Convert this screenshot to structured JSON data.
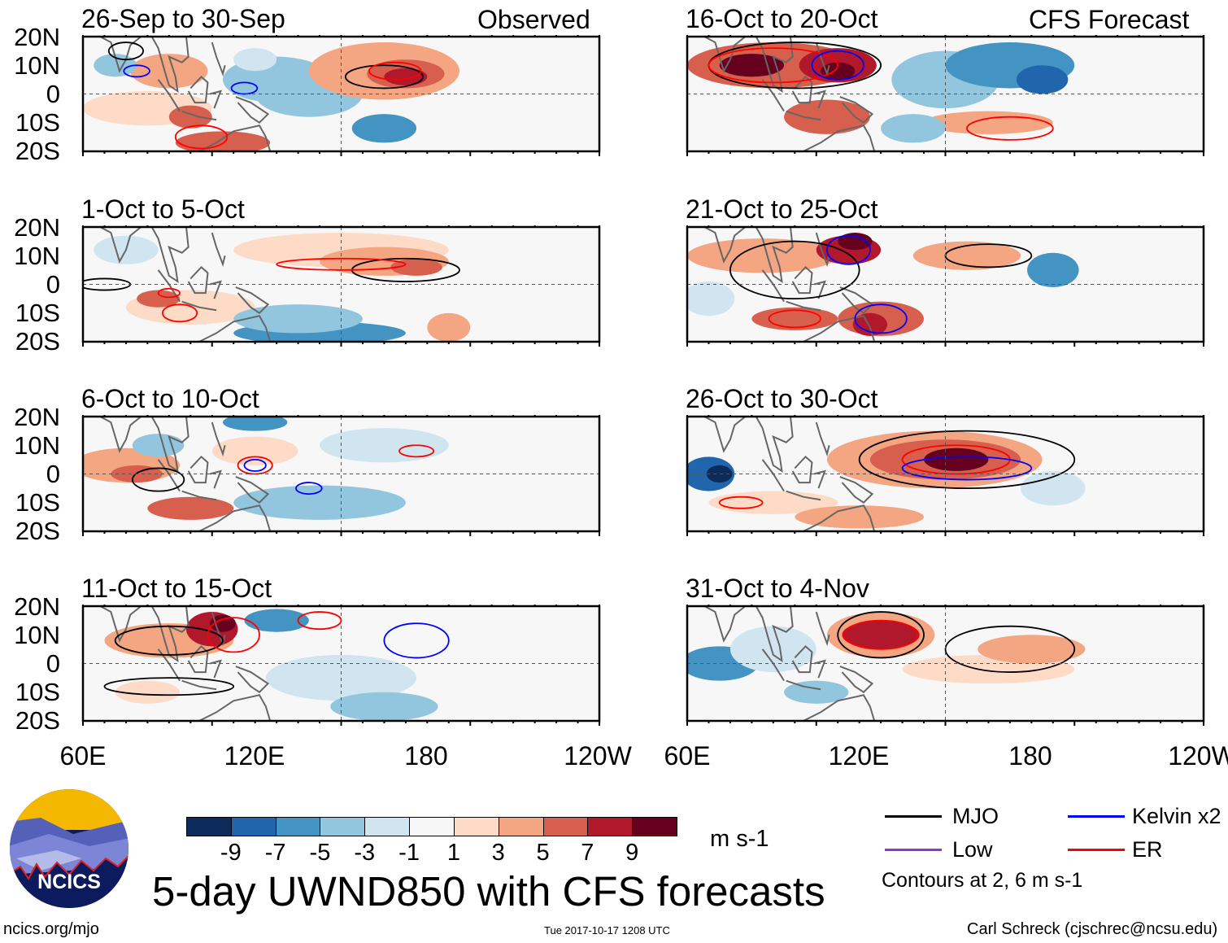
{
  "figure_title": "5-day UWND850 with CFS forecasts",
  "observed_label": "Observed",
  "forecast_label": "CFS Forecast",
  "panels": [
    {
      "title": "26-Sep to 30-Sep",
      "type": "observed"
    },
    {
      "title": "1-Oct to 5-Oct",
      "type": "observed"
    },
    {
      "title": "6-Oct to 10-Oct",
      "type": "observed"
    },
    {
      "title": "11-Oct to 15-Oct",
      "type": "observed"
    },
    {
      "title": "16-Oct to 20-Oct",
      "type": "forecast"
    },
    {
      "title": "21-Oct to 25-Oct",
      "type": "forecast"
    },
    {
      "title": "26-Oct to 30-Oct",
      "type": "forecast"
    },
    {
      "title": "31-Oct to 4-Nov",
      "type": "forecast"
    }
  ],
  "lat_labels": [
    "20N",
    "10N",
    "0",
    "10S",
    "20S"
  ],
  "lon_labels": [
    "60E",
    "120E",
    "180",
    "120W"
  ],
  "colorbar": {
    "colors": [
      "#0b2b5c",
      "#2166ac",
      "#4393c3",
      "#92c5de",
      "#d1e5f0",
      "#f7f7f7",
      "#fddbc7",
      "#f4a582",
      "#d6604d",
      "#b2182b",
      "#67001f"
    ],
    "labels": [
      "-9",
      "-7",
      "-5",
      "-3",
      "-1",
      "1",
      "3",
      "5",
      "7",
      "9"
    ],
    "units": "m s-1"
  },
  "legend": {
    "items": [
      {
        "label": "MJO",
        "color": "#000000"
      },
      {
        "label": "Kelvin x2",
        "color": "#0000ff"
      },
      {
        "label": "Low",
        "color": "#9933cc"
      },
      {
        "label": "ER",
        "color": "#ff0000"
      }
    ],
    "contours_note": "Contours at 2, 6 m s-1"
  },
  "logo_text": "NCICS",
  "footer": {
    "url": "ncics.org/mjo",
    "timestamp": "Tue 2017-10-17 1208 UTC",
    "author": "Carl Schreck (cjschrec@ncsu.edu)"
  }
}
